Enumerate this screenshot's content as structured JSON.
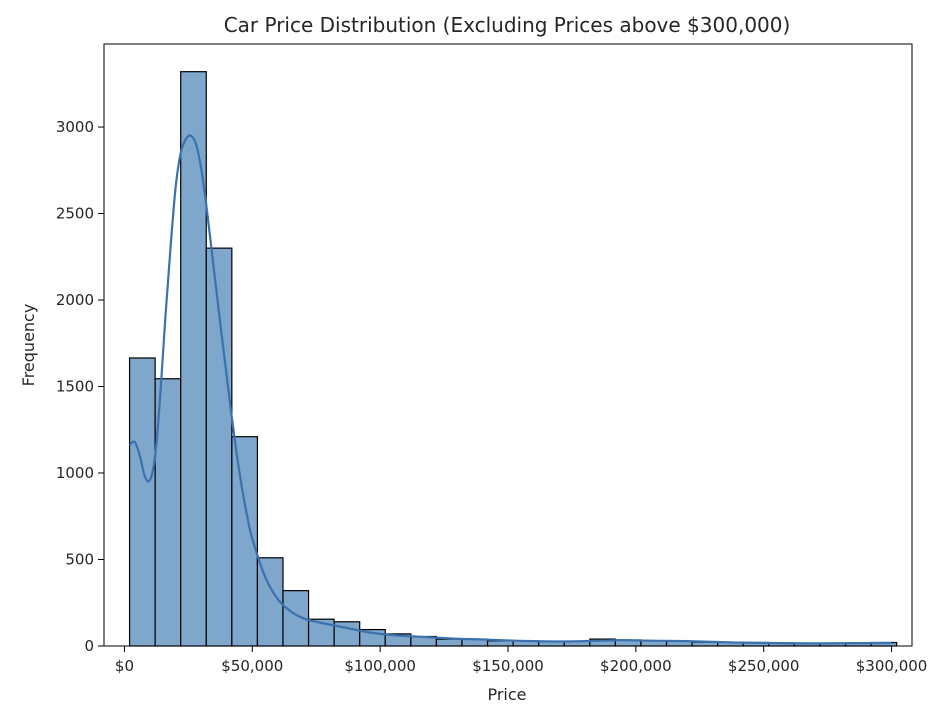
{
  "chart_data": {
    "type": "bar",
    "title": "Car Price Distribution (Excluding Prices above $300,000)",
    "xlabel": "Price",
    "ylabel": "Frequency",
    "xlim": [
      -8000,
      308000
    ],
    "ylim": [
      0,
      3480
    ],
    "x_ticks": [
      0,
      50000,
      100000,
      150000,
      200000,
      250000,
      300000
    ],
    "x_tick_labels": [
      "$0",
      "$50,000",
      "$100,000",
      "$150,000",
      "$200,000",
      "$250,000",
      "$300,000"
    ],
    "y_ticks": [
      0,
      500,
      1000,
      1500,
      2000,
      2500,
      3000
    ],
    "y_tick_labels": [
      "0",
      "500",
      "1000",
      "1500",
      "2000",
      "2500",
      "3000"
    ],
    "bin_start": 2000,
    "bin_width": 10000,
    "bar_values": [
      1665,
      1545,
      3320,
      2300,
      1210,
      510,
      320,
      155,
      140,
      95,
      70,
      55,
      40,
      40,
      30,
      30,
      28,
      28,
      40,
      35,
      30,
      28,
      22,
      22,
      20,
      18,
      15,
      15,
      18,
      20
    ],
    "bar_color": "#7fa6cb",
    "bar_edge_color": "#000000",
    "kde_color": "#3b72ae",
    "kde_points": [
      [
        2000,
        1160
      ],
      [
        4000,
        1180
      ],
      [
        6000,
        1100
      ],
      [
        8000,
        980
      ],
      [
        10000,
        960
      ],
      [
        12000,
        1100
      ],
      [
        14000,
        1450
      ],
      [
        16000,
        1900
      ],
      [
        18000,
        2300
      ],
      [
        20000,
        2650
      ],
      [
        22000,
        2850
      ],
      [
        24000,
        2930
      ],
      [
        26000,
        2950
      ],
      [
        28000,
        2900
      ],
      [
        30000,
        2760
      ],
      [
        32000,
        2550
      ],
      [
        34000,
        2300
      ],
      [
        36000,
        2050
      ],
      [
        38000,
        1800
      ],
      [
        40000,
        1560
      ],
      [
        42000,
        1320
      ],
      [
        44000,
        1100
      ],
      [
        46000,
        910
      ],
      [
        48000,
        750
      ],
      [
        50000,
        620
      ],
      [
        55000,
        400
      ],
      [
        60000,
        270
      ],
      [
        65000,
        200
      ],
      [
        70000,
        160
      ],
      [
        75000,
        140
      ],
      [
        80000,
        125
      ],
      [
        85000,
        110
      ],
      [
        90000,
        95
      ],
      [
        95000,
        80
      ],
      [
        100000,
        70
      ],
      [
        110000,
        58
      ],
      [
        120000,
        50
      ],
      [
        130000,
        42
      ],
      [
        140000,
        38
      ],
      [
        150000,
        32
      ],
      [
        160000,
        28
      ],
      [
        170000,
        26
      ],
      [
        180000,
        28
      ],
      [
        190000,
        32
      ],
      [
        195000,
        34
      ],
      [
        200000,
        32
      ],
      [
        210000,
        30
      ],
      [
        220000,
        28
      ],
      [
        230000,
        24
      ],
      [
        240000,
        20
      ],
      [
        250000,
        18
      ],
      [
        260000,
        16
      ],
      [
        270000,
        15
      ],
      [
        280000,
        16
      ],
      [
        290000,
        17
      ],
      [
        300000,
        18
      ]
    ]
  }
}
